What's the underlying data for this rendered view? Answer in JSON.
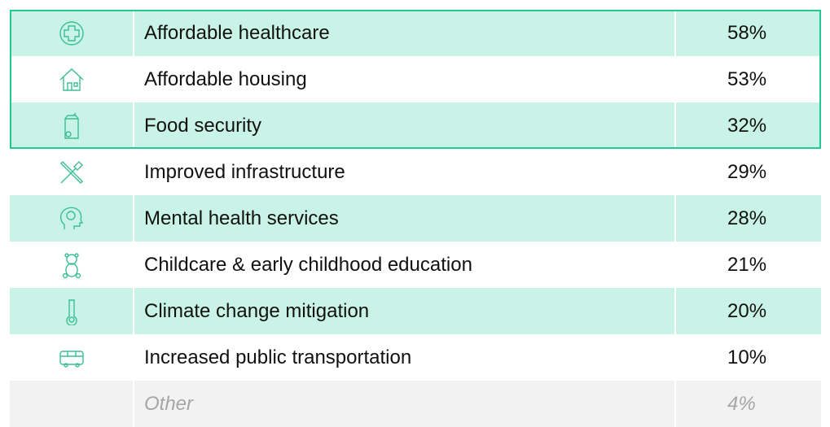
{
  "table": {
    "rows": [
      [
        "Affordable healthcare",
        "58%"
      ],
      [
        "Affordable housing",
        "53%"
      ],
      [
        "Food security",
        "32%"
      ],
      [
        "Improved infrastructure",
        "29%"
      ],
      [
        "Mental health services",
        "28%"
      ],
      [
        "Childcare & early childhood education",
        "21%"
      ],
      [
        "Climate change mitigation",
        "20%"
      ],
      [
        "Increased public transportation",
        "10%"
      ],
      [
        "Other",
        "4%"
      ]
    ]
  }
}
